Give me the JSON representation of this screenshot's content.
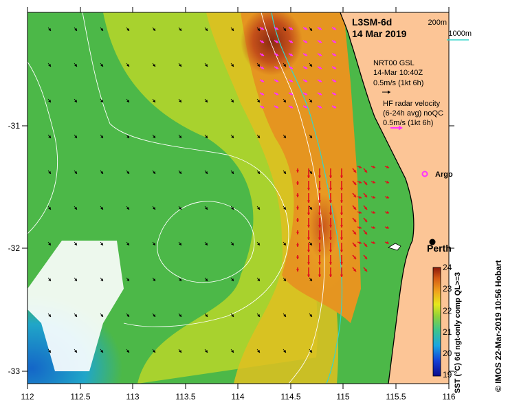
{
  "title": {
    "product": "L3SM-6d",
    "date": "14 Mar 2019"
  },
  "isobaths": {
    "line1": "200m",
    "line2": "1000m",
    "color": "#33d6cc"
  },
  "wind_legend": {
    "line1": "NRT00 GSL",
    "line2": "14-Mar 10:40Z",
    "line3": "0.5m/s (1kt 6h)"
  },
  "radar_legend": {
    "line1": "HF radar velocity",
    "line2": "(6-24h avg) noQC",
    "line3": "0.5m/s (1kt 6h)",
    "color": "#ff33ff"
  },
  "argo": {
    "label": "Argo",
    "color": "#ff33ff"
  },
  "city": {
    "label": "Perth"
  },
  "x_axis": {
    "ticks": [
      "112",
      "112.5",
      "113",
      "113.5",
      "114",
      "114.5",
      "115",
      "115.5",
      "116"
    ]
  },
  "y_axis": {
    "ticks": [
      "-31",
      "-32",
      "-33"
    ]
  },
  "colorbar": {
    "label": "SST (°C) 6d ngt-only comp QL>=3",
    "ticks": [
      "24",
      "23",
      "22",
      "21",
      "20",
      "19"
    ]
  },
  "credit": "© IMOS 22-Mar-2019 10:56 Hobart",
  "colors": {
    "land": "#fcc596",
    "sst_cold": "#1a7fd6",
    "sst_green": "#5ec542",
    "sst_warm": "#e08a1a",
    "sst_hot": "#b8300f"
  }
}
